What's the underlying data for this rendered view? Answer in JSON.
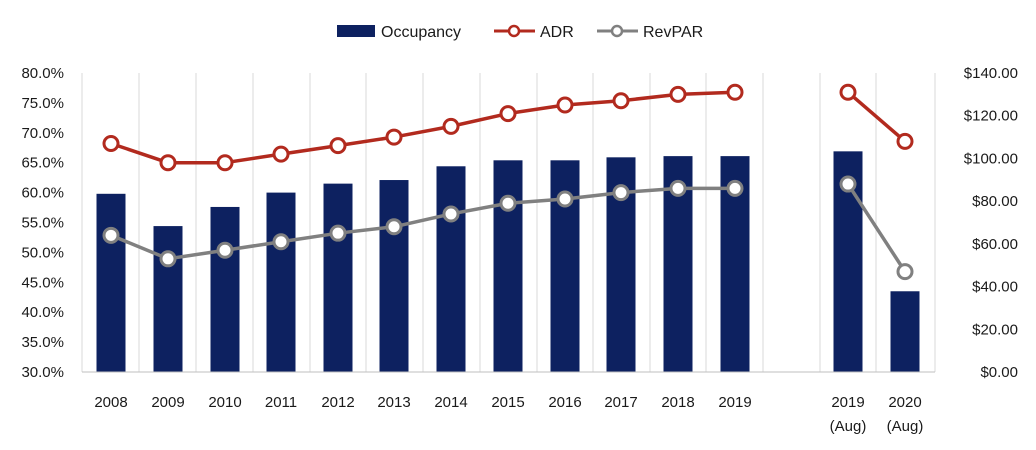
{
  "chart_data": {
    "type": "bar",
    "title": "",
    "categories": [
      {
        "line1": "2008",
        "line2": ""
      },
      {
        "line1": "2009",
        "line2": ""
      },
      {
        "line1": "2010",
        "line2": ""
      },
      {
        "line1": "2011",
        "line2": ""
      },
      {
        "line1": "2012",
        "line2": ""
      },
      {
        "line1": "2013",
        "line2": ""
      },
      {
        "line1": "2014",
        "line2": ""
      },
      {
        "line1": "2015",
        "line2": ""
      },
      {
        "line1": "2016",
        "line2": ""
      },
      {
        "line1": "2017",
        "line2": ""
      },
      {
        "line1": "2018",
        "line2": ""
      },
      {
        "line1": "2019",
        "line2": ""
      },
      {
        "line1": "2019",
        "line2": "(Aug)"
      },
      {
        "line1": "2020",
        "line2": "(Aug)"
      }
    ],
    "series": [
      {
        "name": "Occupancy",
        "type": "bar",
        "axis": "left",
        "color": "#0d2160",
        "values": [
          59.8,
          54.4,
          57.6,
          60.0,
          61.5,
          62.1,
          64.4,
          65.4,
          65.4,
          65.9,
          66.1,
          66.1,
          66.9,
          43.5
        ]
      },
      {
        "name": "ADR",
        "type": "line",
        "axis": "right",
        "color": "#b22a1e",
        "values": [
          107,
          98,
          98,
          102,
          106,
          110,
          115,
          121,
          125,
          127,
          130,
          131,
          131,
          108
        ]
      },
      {
        "name": "RevPAR",
        "type": "line",
        "axis": "right",
        "color": "#808080",
        "values": [
          64,
          53,
          57,
          61,
          65,
          68,
          74,
          79,
          81,
          84,
          86,
          86,
          88,
          47
        ]
      }
    ],
    "line_breaks_after_index": 11,
    "left_axis": {
      "min": 30,
      "max": 80,
      "step": 5,
      "ticks": [
        "30.0%",
        "35.0%",
        "40.0%",
        "45.0%",
        "50.0%",
        "55.0%",
        "60.0%",
        "65.0%",
        "70.0%",
        "75.0%",
        "80.0%"
      ]
    },
    "right_axis": {
      "min": 0,
      "max": 140,
      "step": 20,
      "ticks": [
        "$0.00",
        "$20.00",
        "$40.00",
        "$60.00",
        "$80.00",
        "$100.00",
        "$120.00",
        "$140.00"
      ]
    },
    "grid": "vertical",
    "legend_position": "top-center"
  }
}
